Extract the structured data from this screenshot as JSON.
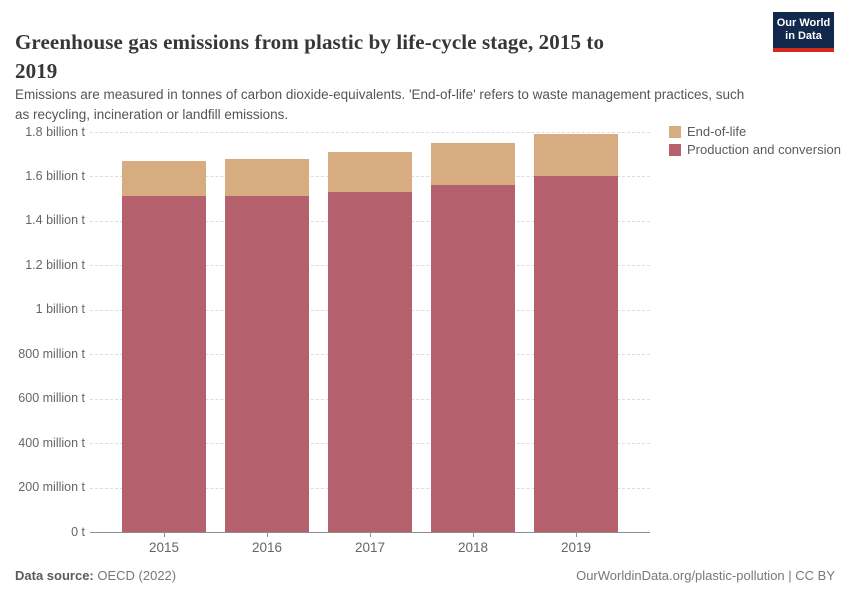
{
  "header": {
    "title_lines": [
      "Greenhouse gas emissions from plastic by life-cycle stage, 2015 to",
      "2019"
    ],
    "subtitle_lines": [
      "Emissions are measured in tonnes of carbon dioxide-equivalents. 'End-of-life' refers to waste management practices, such",
      "as recycling, incineration or landfill emissions."
    ],
    "logo": {
      "line1": "Our World",
      "line2": "in Data",
      "bg_color": "#12294e",
      "stripe_color": "#d42b21"
    }
  },
  "chart_data": {
    "type": "bar",
    "stacked": true,
    "title": "Greenhouse gas emissions from plastic by life-cycle stage, 2015 to 2019",
    "subtitle": "Emissions are measured in tonnes of carbon dioxide-equivalents. 'End-of-life' refers to waste management practices, such as recycling, incineration or landfill emissions.",
    "unit": "tonnes of carbon dioxide-equivalents",
    "categories": [
      "2015",
      "2016",
      "2017",
      "2018",
      "2019"
    ],
    "series": [
      {
        "name": "End-of-life",
        "color": "#D7AC81",
        "values_billion_t": [
          0.16,
          0.17,
          0.18,
          0.19,
          0.19
        ]
      },
      {
        "name": "Production and conversion",
        "color": "#B5616D",
        "values_billion_t": [
          1.51,
          1.51,
          1.53,
          1.56,
          1.6
        ]
      }
    ],
    "totals_billion_t": [
      1.67,
      1.68,
      1.71,
      1.75,
      1.79
    ],
    "ylim_billion_t": [
      0,
      1.8
    ],
    "y_ticks": [
      {
        "value": 0,
        "label": "0 t"
      },
      {
        "value": 0.2,
        "label": "200 million t"
      },
      {
        "value": 0.4,
        "label": "400 million t"
      },
      {
        "value": 0.6,
        "label": "600 million t"
      },
      {
        "value": 0.8,
        "label": "800 million t"
      },
      {
        "value": 1.0,
        "label": "1 billion t"
      },
      {
        "value": 1.2,
        "label": "1.2 billion t"
      },
      {
        "value": 1.4,
        "label": "1.4 billion t"
      },
      {
        "value": 1.6,
        "label": "1.6 billion t"
      },
      {
        "value": 1.8,
        "label": "1.8 billion t"
      }
    ],
    "grid": "dashed horizontal",
    "legend_position": "top-right"
  },
  "footer": {
    "datasource_label": "Data source:",
    "datasource_value": " OECD (2022)",
    "link": "OurWorldinData.org/plastic-pollution",
    "separator": " | ",
    "license": "CC BY"
  }
}
